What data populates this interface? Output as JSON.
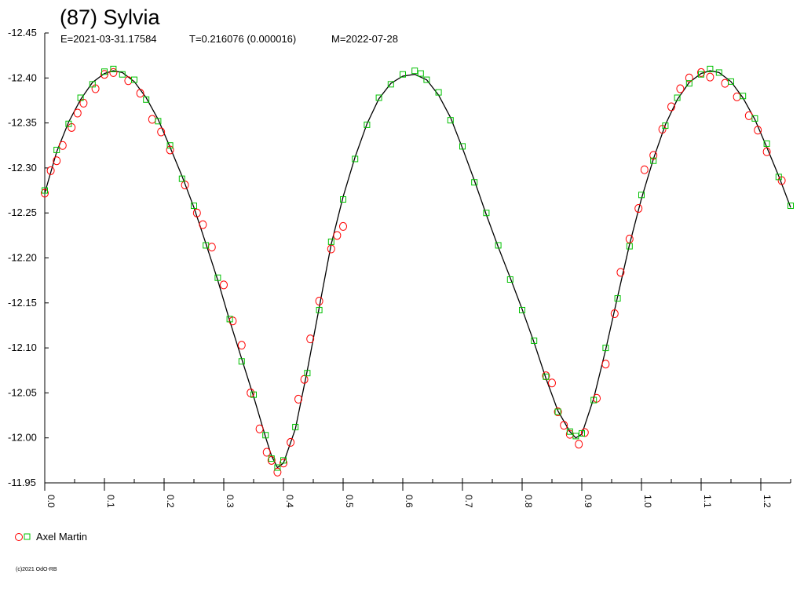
{
  "chart_data": {
    "type": "scatter",
    "title": "(87) Sylvia",
    "subtitle": {
      "epoch": "E=2021-03-31.17584",
      "period": "T=0.216076 (0.000016)",
      "midpoint": "M=2022-07-28"
    },
    "xlabel": "",
    "ylabel": "",
    "xlim": [
      0.0,
      1.25
    ],
    "ylim": [
      -12.45,
      -11.95
    ],
    "y_inverted": true,
    "grid": false,
    "x_ticks": [
      "0.0",
      "0.1",
      "0.2",
      "0.3",
      "0.4",
      "0.5",
      "0.6",
      "0.7",
      "0.8",
      "0.9",
      "1.0",
      "1.1",
      "1.2"
    ],
    "x_tick_values": [
      0.0,
      0.1,
      0.2,
      0.3,
      0.4,
      0.5,
      0.6,
      0.7,
      0.8,
      0.9,
      1.0,
      1.1,
      1.2
    ],
    "y_ticks": [
      "-12.45",
      "-12.40",
      "-12.35",
      "-12.30",
      "-12.25",
      "-12.20",
      "-12.15",
      "-12.10",
      "-12.05",
      "-12.00",
      "-11.95"
    ],
    "y_tick_values": [
      -12.45,
      -12.4,
      -12.35,
      -12.3,
      -12.25,
      -12.2,
      -12.15,
      -12.1,
      -12.05,
      -12.0,
      -11.95
    ],
    "fit_curve": {
      "color": "#000000",
      "x": [
        0.0,
        0.02,
        0.04,
        0.06,
        0.08,
        0.1,
        0.115,
        0.13,
        0.15,
        0.17,
        0.19,
        0.21,
        0.23,
        0.25,
        0.27,
        0.29,
        0.31,
        0.33,
        0.35,
        0.37,
        0.38,
        0.39,
        0.4,
        0.42,
        0.44,
        0.46,
        0.48,
        0.5,
        0.52,
        0.54,
        0.56,
        0.58,
        0.6,
        0.62,
        0.64,
        0.66,
        0.68,
        0.7,
        0.72,
        0.74,
        0.76,
        0.78,
        0.8,
        0.82,
        0.84,
        0.86,
        0.88,
        0.89,
        0.9,
        0.92,
        0.94,
        0.96,
        0.98,
        1.0,
        1.02,
        1.04,
        1.06,
        1.08,
        1.1,
        1.115,
        1.13,
        1.15,
        1.17,
        1.19,
        1.21,
        1.23,
        1.25
      ],
      "y": [
        -12.272,
        -12.318,
        -12.351,
        -12.376,
        -12.395,
        -12.405,
        -12.408,
        -12.406,
        -12.396,
        -12.378,
        -12.354,
        -12.323,
        -12.291,
        -12.256,
        -12.216,
        -12.175,
        -12.13,
        -12.088,
        -12.046,
        -12.001,
        -11.98,
        -11.967,
        -11.972,
        -12.01,
        -12.075,
        -12.145,
        -12.215,
        -12.268,
        -12.312,
        -12.349,
        -12.377,
        -12.394,
        -12.402,
        -12.404,
        -12.398,
        -12.381,
        -12.356,
        -12.322,
        -12.286,
        -12.248,
        -12.212,
        -12.178,
        -12.143,
        -12.106,
        -12.066,
        -12.03,
        -12.007,
        -12.0,
        -12.004,
        -12.044,
        -12.098,
        -12.157,
        -12.215,
        -12.266,
        -12.31,
        -12.348,
        -12.376,
        -12.395,
        -12.405,
        -12.408,
        -12.406,
        -12.396,
        -12.378,
        -12.354,
        -12.323,
        -12.291,
        -12.256
      ]
    },
    "series": [
      {
        "name": "Axel Martin",
        "marker": "circle",
        "color": "#ff0000",
        "x": [
          0.0,
          0.01,
          0.02,
          0.03,
          0.045,
          0.055,
          0.065,
          0.085,
          0.1,
          0.115,
          0.14,
          0.16,
          0.18,
          0.195,
          0.21,
          0.235,
          0.255,
          0.265,
          0.28,
          0.3,
          0.315,
          0.33,
          0.345,
          0.36,
          0.372,
          0.38,
          0.39,
          0.4,
          0.412,
          0.425,
          0.435,
          0.445,
          0.46,
          0.48,
          0.49,
          0.5,
          0.84,
          0.85,
          0.86,
          0.87,
          0.88,
          0.895,
          0.905,
          0.925,
          0.94,
          0.955,
          0.965,
          0.98,
          0.995,
          1.005,
          1.02,
          1.035,
          1.05,
          1.065,
          1.08,
          1.1,
          1.115,
          1.14,
          1.16,
          1.18,
          1.195,
          1.21,
          1.235
        ],
        "y": [
          -12.272,
          -12.297,
          -12.308,
          -12.325,
          -12.345,
          -12.361,
          -12.372,
          -12.388,
          -12.404,
          -12.406,
          -12.397,
          -12.383,
          -12.354,
          -12.34,
          -12.32,
          -12.281,
          -12.25,
          -12.237,
          -12.212,
          -12.17,
          -12.13,
          -12.103,
          -12.05,
          -12.01,
          -11.984,
          -11.975,
          -11.962,
          -11.972,
          -11.995,
          -12.043,
          -12.065,
          -12.11,
          -12.152,
          -12.21,
          -12.225,
          -12.235,
          -12.069,
          -12.061,
          -12.029,
          -12.014,
          -12.004,
          -11.993,
          -12.006,
          -12.044,
          -12.082,
          -12.138,
          -12.184,
          -12.221,
          -12.255,
          -12.298,
          -12.314,
          -12.343,
          -12.368,
          -12.388,
          -12.4,
          -12.406,
          -12.401,
          -12.394,
          -12.379,
          -12.358,
          -12.342,
          -12.318,
          -12.286
        ]
      },
      {
        "name": "Axel Martin",
        "marker": "square",
        "color": "#00c000",
        "x": [
          0.0,
          0.02,
          0.04,
          0.06,
          0.08,
          0.1,
          0.115,
          0.13,
          0.15,
          0.17,
          0.19,
          0.21,
          0.23,
          0.25,
          0.27,
          0.29,
          0.31,
          0.33,
          0.35,
          0.37,
          0.38,
          0.39,
          0.4,
          0.42,
          0.44,
          0.46,
          0.48,
          0.5,
          0.52,
          0.54,
          0.56,
          0.58,
          0.6,
          0.62,
          0.63,
          0.64,
          0.66,
          0.68,
          0.7,
          0.72,
          0.74,
          0.76,
          0.78,
          0.8,
          0.82,
          0.84,
          0.86,
          0.88,
          0.89,
          0.9,
          0.92,
          0.94,
          0.96,
          0.98,
          1.0,
          1.02,
          1.04,
          1.06,
          1.08,
          1.1,
          1.115,
          1.13,
          1.15,
          1.17,
          1.19,
          1.21,
          1.23,
          1.25
        ],
        "y": [
          -12.275,
          -12.32,
          -12.349,
          -12.378,
          -12.393,
          -12.407,
          -12.41,
          -12.404,
          -12.398,
          -12.376,
          -12.352,
          -12.325,
          -12.288,
          -12.258,
          -12.214,
          -12.178,
          -12.132,
          -12.085,
          -12.048,
          -12.003,
          -11.977,
          -11.967,
          -11.975,
          -12.012,
          -12.072,
          -12.142,
          -12.218,
          -12.265,
          -12.31,
          -12.348,
          -12.378,
          -12.393,
          -12.404,
          -12.408,
          -12.405,
          -12.398,
          -12.384,
          -12.353,
          -12.324,
          -12.284,
          -12.25,
          -12.214,
          -12.176,
          -12.142,
          -12.108,
          -12.068,
          -12.029,
          -12.007,
          -12.002,
          -12.005,
          -12.042,
          -12.1,
          -12.155,
          -12.213,
          -12.27,
          -12.308,
          -12.347,
          -12.378,
          -12.394,
          -12.404,
          -12.41,
          -12.406,
          -12.396,
          -12.38,
          -12.355,
          -12.327,
          -12.29,
          -12.258
        ]
      }
    ],
    "legend": {
      "placement": "bottom-left",
      "label": "Axel Martin"
    },
    "copyright": "(c)2021 OdO-RB"
  }
}
